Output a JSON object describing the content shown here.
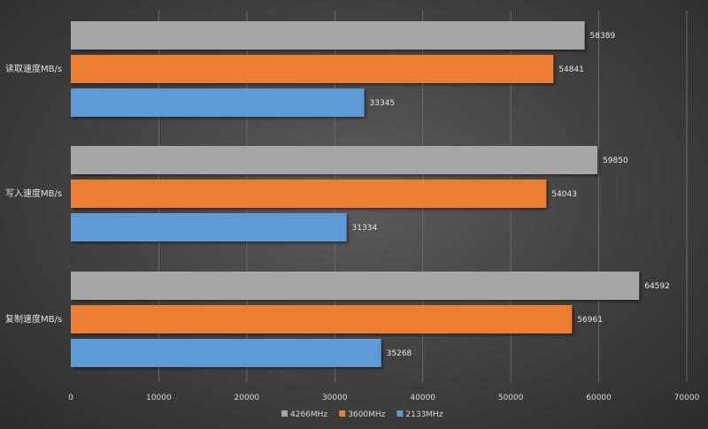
{
  "chart_data": {
    "type": "bar",
    "orientation": "horizontal",
    "categories": [
      "读取速度MB/s",
      "写入速度MB/s",
      "复制速度MB/s"
    ],
    "series": [
      {
        "name": "4266MHz",
        "color": "#a6a6a6",
        "values": [
          58389,
          59850,
          64592
        ]
      },
      {
        "name": "3600MHz",
        "color": "#ed7d31",
        "values": [
          54841,
          54043,
          56961
        ]
      },
      {
        "name": "2133MHz",
        "color": "#5b9bd5",
        "values": [
          33345,
          31334,
          35268
        ]
      }
    ],
    "x_ticks": [
      "0",
      "10000",
      "20000",
      "30000",
      "40000",
      "50000",
      "60000",
      "70000"
    ],
    "xlim": [
      0,
      70000
    ],
    "grid": "vertical",
    "legend": "bottom-center",
    "title": "",
    "xlabel": "",
    "ylabel": ""
  }
}
